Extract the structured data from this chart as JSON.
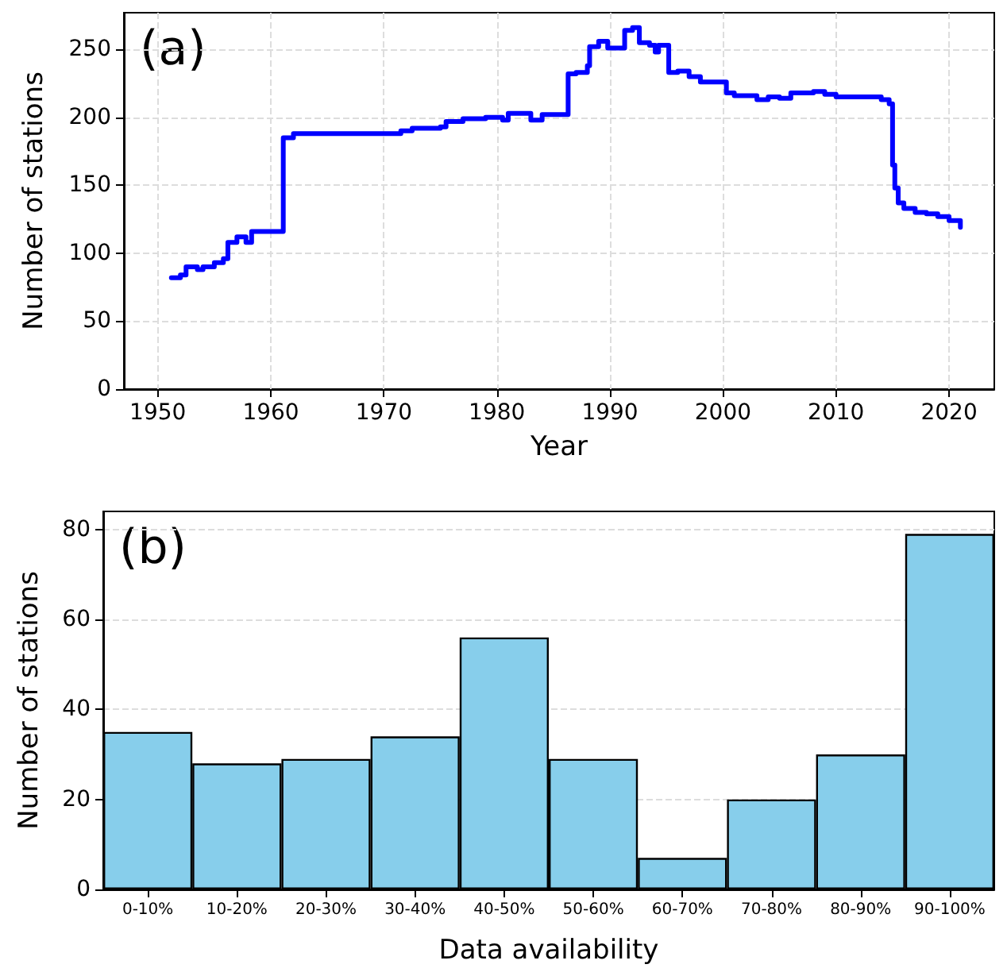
{
  "chart_data": [
    {
      "type": "step",
      "xlabel": "Year",
      "ylabel": "Number of stations",
      "annotations": [
        "(a)"
      ],
      "xlim": [
        1947,
        2024
      ],
      "xticks": [
        1950,
        1960,
        1970,
        1980,
        1990,
        2000,
        2010,
        2020
      ],
      "ylim": [
        0,
        277
      ],
      "yticks": [
        0,
        50,
        100,
        150,
        200,
        250
      ],
      "grid": true,
      "line_style": "solid",
      "marker": "none",
      "series": [
        {
          "color": "#0000ff",
          "x": [
            1951.2,
            1952,
            1952.5,
            1953.5,
            1954,
            1955,
            1955.8,
            1956.2,
            1957,
            1957.8,
            1958.3,
            1961.1,
            1962,
            1965,
            1970,
            1971.5,
            1972.5,
            1975,
            1975.5,
            1977,
            1979,
            1980.5,
            1981,
            1982,
            1983,
            1984,
            1986.3,
            1987,
            1988,
            1988.2,
            1989,
            1989.8,
            1991.3,
            1992,
            1992.6,
            1993.5,
            1994,
            1994.3,
            1995.2,
            1996,
            1997,
            1998,
            2000.3,
            2001,
            2003,
            2004,
            2005,
            2006,
            2008,
            2009,
            2010,
            2014,
            2014.7,
            2015,
            2015.2,
            2015.5,
            2016,
            2017,
            2018,
            2019,
            2020,
            2021
          ],
          "values": [
            82,
            84,
            90,
            88,
            90,
            93,
            96,
            108,
            112,
            108,
            116,
            185,
            188,
            188,
            188,
            190,
            192,
            193,
            197,
            199,
            200,
            198,
            203,
            203,
            198,
            202,
            232,
            233,
            238,
            252,
            256,
            251,
            264,
            266,
            255,
            253,
            248,
            253,
            233,
            234,
            230,
            226,
            218,
            216,
            213,
            215,
            214,
            218,
            219,
            217,
            215,
            213,
            210,
            165,
            148,
            137,
            133,
            130,
            129,
            127,
            124,
            119
          ]
        }
      ]
    },
    {
      "type": "bar",
      "xlabel": "Data availability",
      "ylabel": "Number of stations",
      "annotations": [
        "(b)"
      ],
      "categories": [
        "0-10%",
        "10-20%",
        "20-30%",
        "30-40%",
        "40-50%",
        "50-60%",
        "60-70%",
        "70-80%",
        "80-90%",
        "90-100%"
      ],
      "ylim": [
        0,
        84
      ],
      "yticks": [
        0,
        20,
        40,
        60,
        80
      ],
      "grid": "y",
      "series": [
        {
          "color": "#87ceeb",
          "values": [
            35,
            28,
            29,
            34,
            56,
            29,
            7,
            20,
            30,
            79
          ]
        }
      ]
    }
  ]
}
